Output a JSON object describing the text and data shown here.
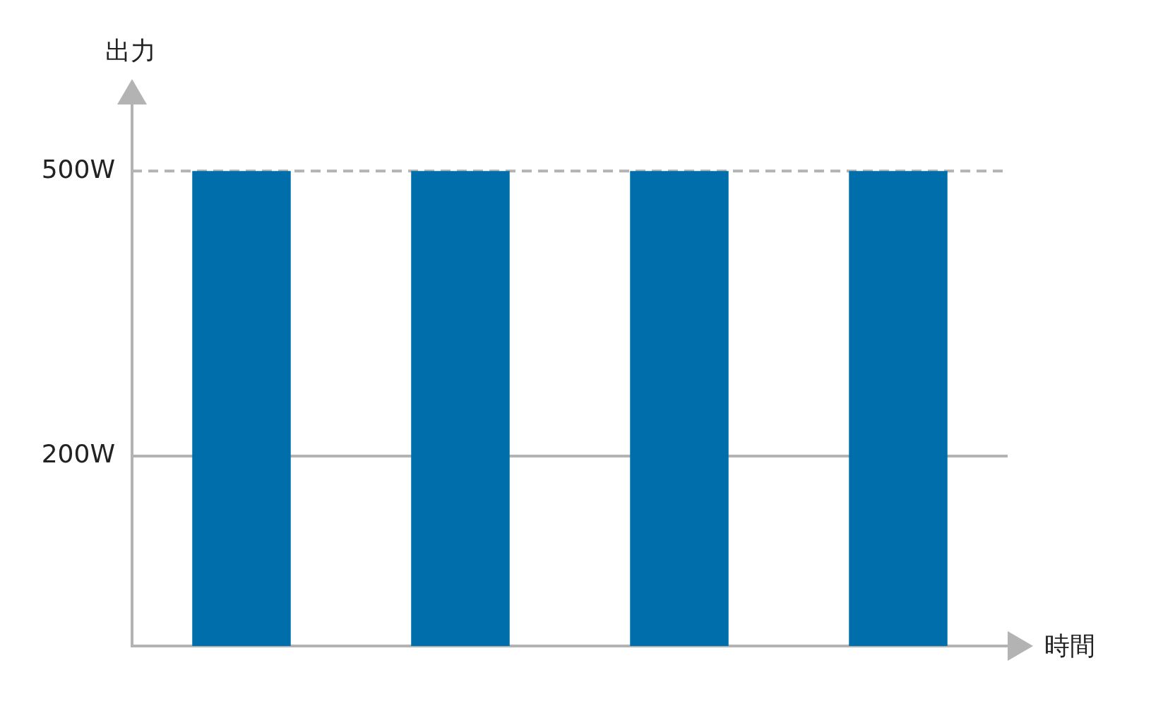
{
  "chart_data": {
    "type": "bar",
    "xlabel": "時間",
    "ylabel": "出力",
    "categories": [
      null,
      null,
      null,
      null
    ],
    "values": [
      500,
      500,
      500,
      500
    ],
    "color": "#006eaa",
    "ylim": [
      0,
      570
    ],
    "yticks": [
      {
        "value": 200,
        "label": "200W"
      },
      {
        "value": 500,
        "label": "500W"
      }
    ],
    "tick_labels": "y",
    "grid": false,
    "legend": false,
    "ref_lines": [
      {
        "axis": "y",
        "value": 200,
        "color": "#b3b3b3",
        "line_style": "solid"
      },
      {
        "axis": "y",
        "value": 500,
        "color": "#b3b3b3",
        "line_style": "dashed"
      }
    ]
  }
}
